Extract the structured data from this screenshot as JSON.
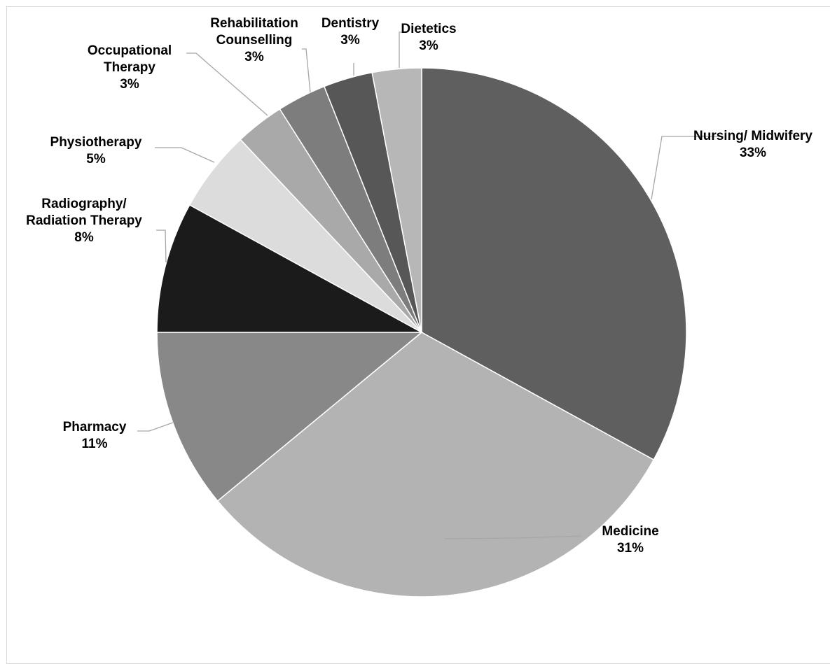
{
  "chart_data": {
    "type": "pie",
    "title": "",
    "legend": "none",
    "slices": [
      {
        "name": "Nursing/ Midwifery",
        "value": 33,
        "label": "33%",
        "color": "#5f5f5f"
      },
      {
        "name": "Medicine",
        "value": 31,
        "label": "31%",
        "color": "#b3b3b3"
      },
      {
        "name": "Pharmacy",
        "value": 11,
        "label": "11%",
        "color": "#888888"
      },
      {
        "name": "Radiography/ Radiation Therapy",
        "value": 8,
        "label": "8%",
        "color": "#1b1b1b"
      },
      {
        "name": "Physiotherapy",
        "value": 5,
        "label": "5%",
        "color": "#dcdcdc"
      },
      {
        "name": "Occupational Therapy",
        "value": 3,
        "label": "3%",
        "color": "#a9a9a9"
      },
      {
        "name": "Rehabilitation Counselling",
        "value": 3,
        "label": "3%",
        "color": "#7d7d7d"
      },
      {
        "name": "Dentistry",
        "value": 3,
        "label": "3%",
        "color": "#575757"
      },
      {
        "name": "Dietetics",
        "value": 3,
        "label": "3%",
        "color": "#b7b7b7"
      }
    ]
  }
}
